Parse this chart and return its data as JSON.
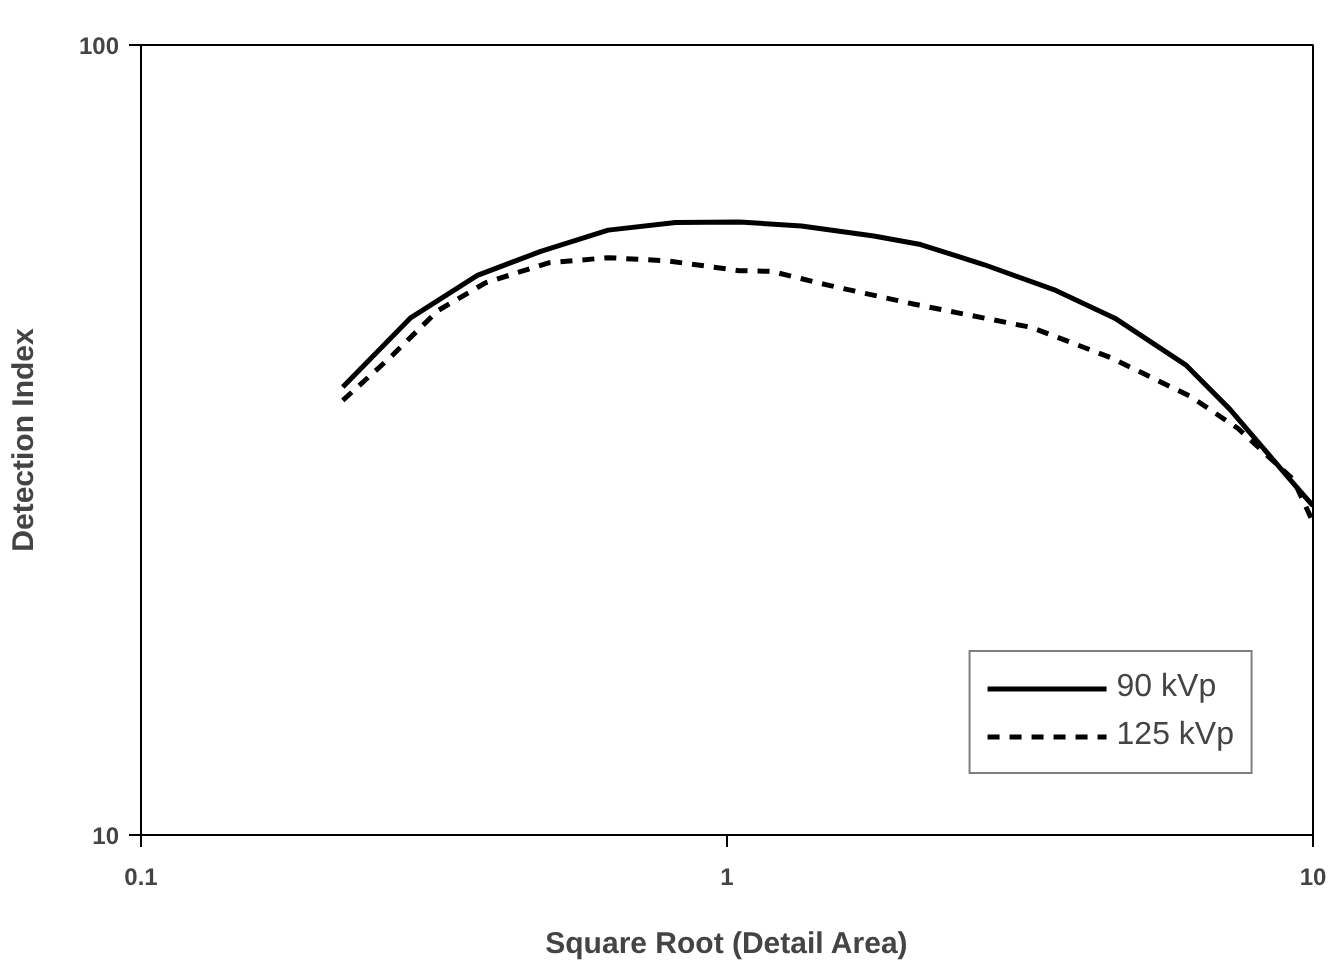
{
  "chart_data": {
    "type": "line",
    "xlabel": "Square Root (Detail Area)",
    "ylabel": "Detection Index",
    "log": "xy",
    "xlim": [
      0.1,
      10
    ],
    "ylim": [
      10,
      100
    ],
    "xticks": [
      0.1,
      1,
      10
    ],
    "yticks": [
      10,
      100
    ],
    "grid": false,
    "legend": "bottom right",
    "marker": "none",
    "series": [
      {
        "name": "90 kVp",
        "color": "#000000",
        "line_style": "solid",
        "x": [
          0.221,
          0.288,
          0.375,
          0.481,
          0.627,
          0.817,
          1.05,
          1.34,
          1.78,
          2.14,
          2.75,
          3.64,
          4.59,
          6.08,
          7.21,
          9.4,
          10
        ],
        "values": [
          36.9,
          45.1,
          51.1,
          54.8,
          58.3,
          59.6,
          59.7,
          59.0,
          57.3,
          55.9,
          52.7,
          48.9,
          45.1,
          39.3,
          34.6,
          27.5,
          26.1
        ]
      },
      {
        "name": "125 kVp",
        "color": "#000000",
        "line_style": "dashed",
        "x": [
          0.221,
          0.266,
          0.321,
          0.387,
          0.496,
          0.627,
          0.791,
          1.05,
          1.19,
          1.48,
          2.08,
          3.31,
          4.52,
          6.18,
          7.45,
          9.25,
          10
        ],
        "values": [
          35.5,
          40.2,
          46.1,
          50.0,
          53.0,
          53.8,
          53.3,
          51.8,
          51.7,
          49.7,
          47.0,
          43.9,
          40.2,
          35.9,
          32.7,
          28.2,
          24.9
        ]
      }
    ]
  }
}
